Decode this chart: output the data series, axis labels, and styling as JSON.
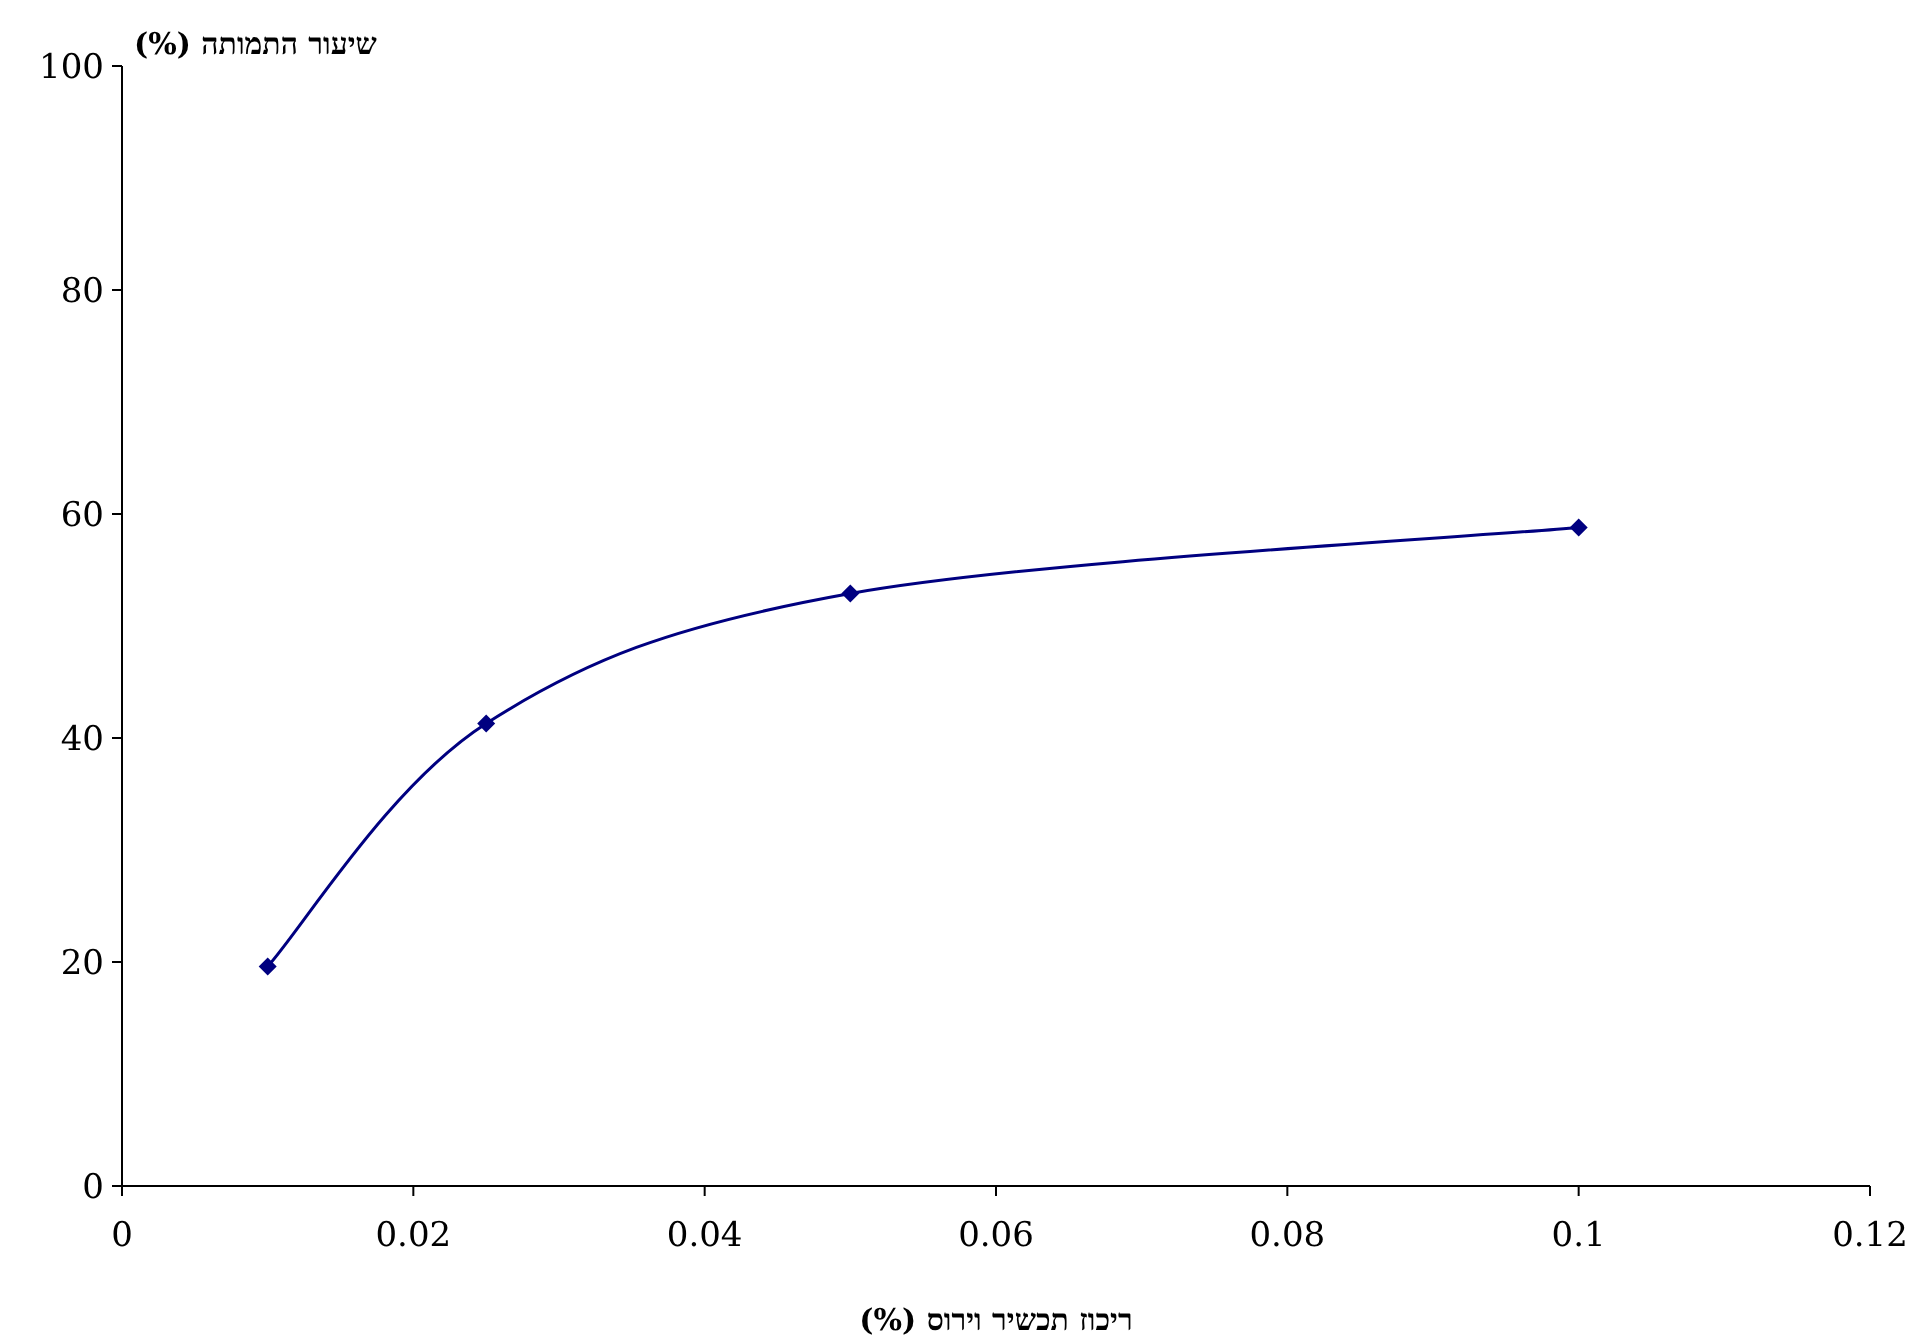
{
  "chart_data": {
    "type": "line",
    "xlabel": "ריכוז תכשיר וירוס (%)",
    "ylabel": "שיעור התמותה (%)",
    "x": [
      0.01,
      0.025,
      0.05,
      0.1
    ],
    "series": [
      {
        "color": "#000080",
        "values": [
          19.6,
          41.3,
          52.9,
          58.8
        ]
      }
    ],
    "xlim": [
      0,
      0.12
    ],
    "xticks": [
      0,
      0.02,
      0.04,
      0.06,
      0.08,
      0.1,
      0.12
    ],
    "ylim": [
      0,
      100
    ],
    "yticks": [
      0,
      20,
      40,
      60,
      80,
      100
    ],
    "grid": false,
    "marker": "diamond",
    "line_style": "solid"
  }
}
